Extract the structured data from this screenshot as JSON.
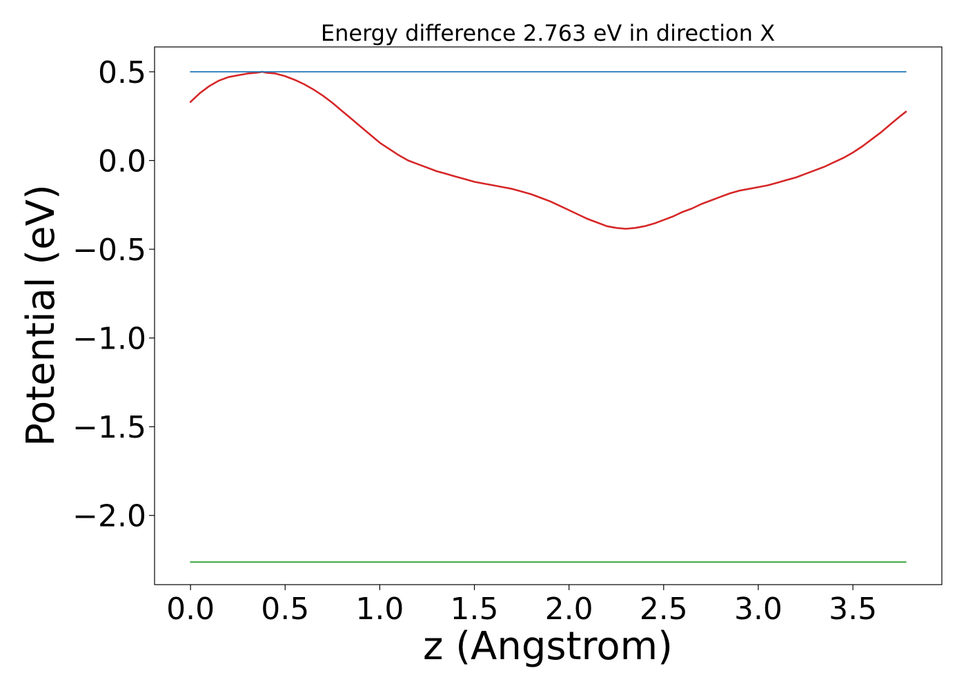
{
  "chart_data": {
    "type": "line",
    "title": "Energy difference 2.763 eV in direction X",
    "xlabel": "z (Angstrom)",
    "ylabel": "Potential (eV)",
    "xlim": [
      -0.19,
      3.97
    ],
    "ylim": [
      -2.39,
      0.64
    ],
    "grid": false,
    "xticks": [
      0.0,
      0.5,
      1.0,
      1.5,
      2.0,
      2.5,
      3.0,
      3.5
    ],
    "xtick_labels": [
      "0.0",
      "0.5",
      "1.0",
      "1.5",
      "2.0",
      "2.5",
      "3.0",
      "3.5"
    ],
    "yticks": [
      0.5,
      0.0,
      -0.5,
      -1.0,
      -1.5,
      -2.0
    ],
    "ytick_labels": [
      "0.5",
      "0.0",
      "−0.5",
      "−1.0",
      "−1.5",
      "−2.0"
    ],
    "series": [
      {
        "color": "#d62728",
        "x": [
          0.0,
          0.05,
          0.1,
          0.15,
          0.2,
          0.25,
          0.3,
          0.35,
          0.38,
          0.4,
          0.45,
          0.5,
          0.55,
          0.6,
          0.65,
          0.7,
          0.75,
          0.8,
          0.85,
          0.9,
          0.95,
          1.0,
          1.05,
          1.1,
          1.15,
          1.2,
          1.25,
          1.3,
          1.35,
          1.4,
          1.45,
          1.5,
          1.55,
          1.6,
          1.65,
          1.7,
          1.75,
          1.8,
          1.85,
          1.9,
          1.95,
          2.0,
          2.05,
          2.1,
          2.15,
          2.2,
          2.25,
          2.3,
          2.35,
          2.4,
          2.45,
          2.5,
          2.55,
          2.6,
          2.65,
          2.7,
          2.75,
          2.8,
          2.85,
          2.9,
          2.95,
          3.0,
          3.05,
          3.1,
          3.15,
          3.2,
          3.25,
          3.3,
          3.35,
          3.4,
          3.45,
          3.5,
          3.55,
          3.6,
          3.65,
          3.7,
          3.75,
          3.78
        ],
        "y": [
          0.33,
          0.38,
          0.42,
          0.45,
          0.47,
          0.48,
          0.49,
          0.495,
          0.5,
          0.495,
          0.49,
          0.475,
          0.455,
          0.43,
          0.4,
          0.365,
          0.325,
          0.28,
          0.235,
          0.19,
          0.145,
          0.1,
          0.065,
          0.03,
          0.0,
          -0.02,
          -0.04,
          -0.06,
          -0.075,
          -0.09,
          -0.105,
          -0.12,
          -0.13,
          -0.14,
          -0.15,
          -0.16,
          -0.175,
          -0.19,
          -0.21,
          -0.23,
          -0.255,
          -0.28,
          -0.305,
          -0.33,
          -0.35,
          -0.37,
          -0.38,
          -0.385,
          -0.38,
          -0.37,
          -0.355,
          -0.335,
          -0.315,
          -0.29,
          -0.27,
          -0.245,
          -0.225,
          -0.205,
          -0.185,
          -0.17,
          -0.16,
          -0.15,
          -0.14,
          -0.125,
          -0.11,
          -0.095,
          -0.075,
          -0.055,
          -0.035,
          -0.01,
          0.015,
          0.045,
          0.08,
          0.12,
          0.16,
          0.205,
          0.25,
          0.275
        ]
      },
      {
        "color": "#1f77b4",
        "x": [
          0.0,
          3.78
        ],
        "y": [
          0.5,
          0.5
        ]
      },
      {
        "color": "#2ca02c",
        "x": [
          0.0,
          3.78
        ],
        "y": [
          -2.263,
          -2.263
        ]
      }
    ]
  }
}
